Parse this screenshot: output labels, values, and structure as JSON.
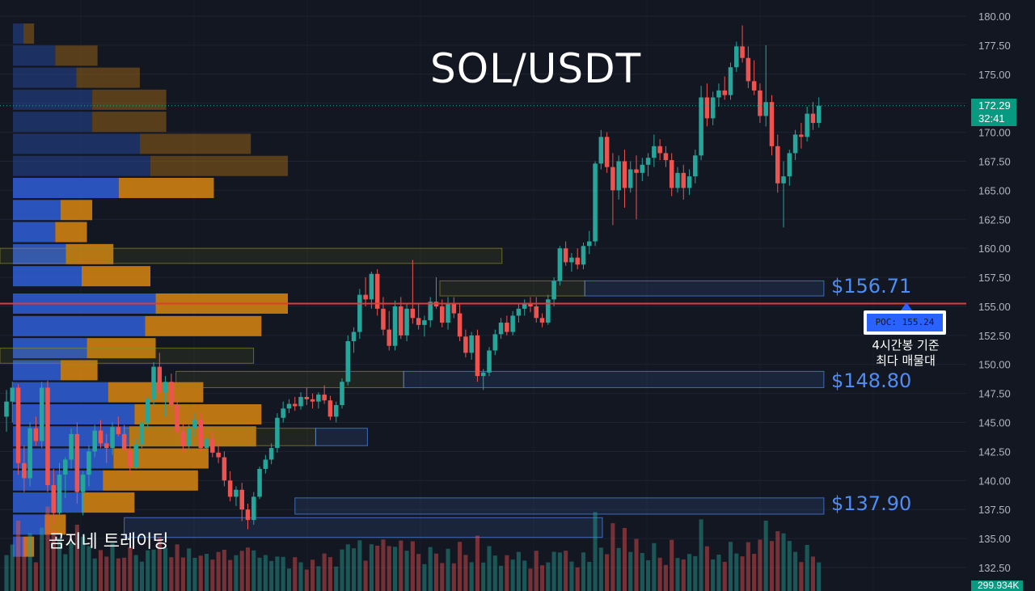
{
  "title": "SOL/USDT",
  "watermark": "곰지네 트레이딩",
  "last_price": {
    "price": "172.29",
    "countdown": "32:41",
    "value": 172.29
  },
  "volume_tag": "299.934K",
  "levels": [
    {
      "label": "$156.71",
      "value": 156.71
    },
    {
      "label": "$148.80",
      "value": 148.8
    },
    {
      "label": "$137.90",
      "value": 137.9
    }
  ],
  "poc": {
    "label": "POC: 155.24",
    "value": 155.24
  },
  "poc_note": [
    "4시간봉 기준",
    "최다 매물대"
  ],
  "colors": {
    "up": "#26a69a",
    "down": "#ef5350",
    "poc_line": "#e53935",
    "level_box": "#4f8df5",
    "vp_buy": "#2f5fd6",
    "vp_sell": "#d9860f",
    "background": "#131722"
  },
  "chart_data": {
    "type": "candlestick",
    "title": "SOL/USDT",
    "ylim": [
      131,
      181
    ],
    "ytick_labels": [
      "180.00",
      "177.50",
      "175.00",
      "172.50",
      "170.00",
      "167.50",
      "165.00",
      "162.50",
      "160.00",
      "157.50",
      "155.00",
      "152.50",
      "150.00",
      "147.50",
      "145.00",
      "142.50",
      "140.00",
      "137.50",
      "135.00",
      "132.50"
    ],
    "ohlc": [
      [
        145.5,
        147.8,
        144.2,
        146.8
      ],
      [
        146.8,
        148.5,
        145.0,
        148.0
      ],
      [
        148.0,
        148.3,
        140.5,
        141.5
      ],
      [
        141.5,
        143.0,
        139.0,
        140.2
      ],
      [
        140.2,
        145.0,
        139.5,
        144.5
      ],
      [
        144.5,
        145.5,
        143.0,
        143.4
      ],
      [
        143.4,
        148.5,
        142.8,
        148.0
      ],
      [
        148.0,
        148.6,
        139.0,
        139.6
      ],
      [
        139.6,
        141.0,
        136.2,
        137.2
      ],
      [
        137.2,
        141.5,
        136.8,
        140.5
      ],
      [
        140.5,
        142.0,
        138.5,
        141.8
      ],
      [
        141.8,
        144.5,
        141.0,
        144.0
      ],
      [
        144.0,
        145.0,
        138.0,
        139.0
      ],
      [
        139.0,
        140.8,
        137.0,
        140.5
      ],
      [
        140.5,
        143.0,
        139.5,
        142.5
      ],
      [
        142.5,
        144.8,
        142.0,
        144.3
      ],
      [
        144.3,
        145.2,
        142.8,
        143.2
      ],
      [
        143.2,
        144.0,
        141.5,
        142.8
      ],
      [
        142.8,
        145.0,
        142.2,
        144.6
      ],
      [
        144.6,
        145.5,
        143.8,
        144.0
      ],
      [
        144.0,
        144.8,
        142.0,
        142.6
      ],
      [
        142.6,
        143.2,
        140.5,
        141.2
      ],
      [
        141.2,
        143.6,
        141.0,
        143.1
      ],
      [
        143.1,
        145.5,
        142.8,
        145.0
      ],
      [
        145.0,
        147.2,
        144.5,
        147.0
      ],
      [
        147.0,
        150.2,
        146.4,
        149.8
      ],
      [
        149.8,
        151.0,
        147.0,
        147.6
      ],
      [
        147.6,
        149.0,
        145.5,
        148.5
      ],
      [
        148.5,
        149.2,
        146.0,
        146.5
      ],
      [
        146.5,
        147.2,
        143.8,
        144.2
      ],
      [
        144.2,
        145.0,
        142.4,
        143.0
      ],
      [
        143.0,
        144.8,
        142.5,
        144.5
      ],
      [
        144.5,
        145.8,
        143.8,
        145.2
      ],
      [
        145.2,
        145.8,
        142.5,
        142.8
      ],
      [
        142.8,
        144.0,
        142.0,
        143.6
      ],
      [
        143.6,
        144.2,
        142.0,
        142.4
      ],
      [
        142.4,
        143.2,
        141.5,
        142.0
      ],
      [
        142.0,
        142.5,
        139.5,
        140.0
      ],
      [
        140.0,
        140.8,
        138.2,
        138.6
      ],
      [
        138.6,
        139.5,
        137.8,
        139.2
      ],
      [
        139.2,
        139.8,
        136.5,
        137.5
      ],
      [
        137.5,
        138.0,
        135.8,
        136.6
      ],
      [
        136.6,
        139.0,
        136.2,
        138.6
      ],
      [
        138.6,
        141.2,
        138.4,
        141.0
      ],
      [
        141.0,
        142.2,
        140.6,
        141.8
      ],
      [
        141.8,
        143.2,
        141.4,
        142.8
      ],
      [
        142.8,
        145.8,
        142.4,
        145.4
      ],
      [
        145.4,
        146.8,
        145.0,
        146.2
      ],
      [
        146.2,
        147.0,
        145.8,
        146.6
      ],
      [
        146.6,
        147.2,
        146.0,
        146.4
      ],
      [
        146.4,
        147.6,
        146.1,
        147.2
      ],
      [
        147.2,
        148.0,
        146.5,
        147.0
      ],
      [
        147.0,
        147.5,
        146.2,
        146.8
      ],
      [
        146.8,
        147.6,
        146.2,
        147.4
      ],
      [
        147.4,
        148.2,
        146.6,
        146.9
      ],
      [
        146.9,
        147.3,
        145.2,
        145.5
      ],
      [
        145.5,
        146.8,
        145.0,
        146.5
      ],
      [
        146.5,
        148.8,
        146.2,
        148.5
      ],
      [
        148.5,
        152.5,
        148.2,
        152.0
      ],
      [
        152.0,
        153.2,
        151.0,
        152.8
      ],
      [
        152.8,
        156.5,
        152.2,
        156.0
      ],
      [
        156.0,
        157.5,
        155.0,
        155.6
      ],
      [
        155.6,
        158.0,
        154.8,
        157.8
      ],
      [
        157.8,
        158.2,
        154.2,
        154.8
      ],
      [
        154.8,
        155.8,
        152.5,
        153.0
      ],
      [
        153.0,
        154.6,
        151.2,
        151.6
      ],
      [
        151.6,
        155.5,
        151.2,
        155.0
      ],
      [
        155.0,
        155.8,
        152.2,
        152.5
      ],
      [
        152.5,
        155.2,
        152.0,
        154.8
      ],
      [
        154.8,
        159.0,
        153.5,
        154.0
      ],
      [
        154.0,
        155.2,
        153.0,
        153.4
      ],
      [
        153.4,
        154.2,
        152.4,
        153.8
      ],
      [
        153.8,
        155.8,
        153.2,
        155.4
      ],
      [
        155.4,
        157.5,
        154.8,
        155.0
      ],
      [
        155.0,
        155.6,
        153.2,
        153.6
      ],
      [
        153.6,
        155.8,
        153.0,
        155.2
      ],
      [
        155.2,
        155.8,
        154.0,
        154.4
      ],
      [
        154.4,
        155.2,
        152.0,
        152.4
      ],
      [
        152.4,
        153.0,
        150.6,
        151.0
      ],
      [
        151.0,
        152.8,
        150.4,
        152.5
      ],
      [
        152.5,
        153.0,
        148.5,
        149.0
      ],
      [
        149.0,
        149.6,
        147.8,
        149.3
      ],
      [
        149.3,
        151.5,
        149.0,
        151.2
      ],
      [
        151.2,
        153.0,
        150.8,
        152.6
      ],
      [
        152.6,
        154.0,
        152.2,
        153.6
      ],
      [
        153.6,
        154.2,
        152.5,
        152.8
      ],
      [
        152.8,
        154.6,
        152.5,
        154.2
      ],
      [
        154.2,
        155.2,
        153.6,
        154.8
      ],
      [
        154.8,
        155.6,
        154.2,
        155.2
      ],
      [
        155.2,
        155.8,
        154.5,
        155.0
      ],
      [
        155.0,
        155.8,
        153.6,
        154.0
      ],
      [
        154.0,
        154.4,
        153.2,
        153.6
      ],
      [
        153.6,
        156.0,
        153.4,
        155.6
      ],
      [
        155.6,
        157.5,
        155.0,
        157.2
      ],
      [
        157.2,
        160.2,
        156.8,
        160.0
      ],
      [
        160.0,
        160.6,
        158.5,
        158.8
      ],
      [
        158.8,
        159.6,
        158.0,
        159.2
      ],
      [
        159.2,
        160.0,
        158.2,
        158.6
      ],
      [
        158.6,
        160.5,
        158.2,
        160.2
      ],
      [
        160.2,
        161.5,
        159.5,
        160.6
      ],
      [
        160.6,
        167.5,
        160.2,
        167.3
      ],
      [
        167.3,
        170.2,
        166.8,
        169.6
      ],
      [
        169.6,
        170.0,
        166.5,
        167.0
      ],
      [
        167.0,
        168.2,
        162.0,
        165.0
      ],
      [
        165.0,
        168.0,
        164.2,
        167.5
      ],
      [
        167.5,
        168.5,
        163.5,
        165.2
      ],
      [
        165.2,
        167.5,
        164.8,
        166.8
      ],
      [
        166.8,
        168.0,
        162.5,
        166.5
      ],
      [
        166.5,
        167.8,
        165.8,
        167.2
      ],
      [
        167.2,
        168.2,
        166.2,
        167.8
      ],
      [
        167.8,
        169.8,
        167.0,
        168.8
      ],
      [
        168.8,
        169.4,
        167.6,
        168.2
      ],
      [
        168.2,
        168.8,
        167.0,
        167.6
      ],
      [
        167.6,
        168.2,
        164.5,
        165.2
      ],
      [
        165.2,
        167.0,
        164.8,
        166.5
      ],
      [
        166.5,
        167.2,
        164.2,
        165.2
      ],
      [
        165.2,
        166.8,
        164.6,
        166.2
      ],
      [
        166.2,
        168.5,
        165.6,
        168.0
      ],
      [
        168.0,
        174.0,
        167.6,
        173.0
      ],
      [
        173.0,
        174.2,
        170.5,
        171.2
      ],
      [
        171.2,
        173.5,
        170.6,
        173.0
      ],
      [
        173.0,
        174.2,
        172.2,
        173.6
      ],
      [
        173.6,
        174.8,
        172.8,
        173.2
      ],
      [
        173.2,
        176.0,
        172.8,
        175.6
      ],
      [
        175.6,
        177.8,
        175.2,
        177.4
      ],
      [
        177.4,
        179.2,
        176.0,
        176.4
      ],
      [
        176.4,
        177.4,
        173.8,
        174.4
      ],
      [
        174.4,
        176.2,
        173.2,
        173.6
      ],
      [
        173.6,
        174.2,
        170.8,
        171.4
      ],
      [
        171.4,
        177.5,
        170.5,
        172.6
      ],
      [
        172.6,
        173.2,
        168.0,
        168.8
      ],
      [
        168.8,
        169.8,
        164.8,
        165.6
      ],
      [
        165.6,
        167.5,
        161.8,
        166.2
      ],
      [
        166.2,
        168.5,
        165.4,
        168.2
      ],
      [
        168.2,
        170.2,
        167.6,
        169.8
      ],
      [
        169.8,
        170.8,
        168.6,
        169.6
      ],
      [
        169.6,
        172.2,
        169.2,
        171.6
      ],
      [
        171.6,
        172.6,
        170.2,
        170.8
      ],
      [
        170.8,
        173.0,
        170.4,
        172.29
      ]
    ],
    "volume_profile": [
      {
        "price": 178.5,
        "buy": 2,
        "sell": 2
      },
      {
        "price": 176.6,
        "buy": 8,
        "sell": 8
      },
      {
        "price": 174.7,
        "buy": 12,
        "sell": 12
      },
      {
        "price": 172.8,
        "buy": 15,
        "sell": 14
      },
      {
        "price": 170.9,
        "buy": 15,
        "sell": 14
      },
      {
        "price": 169.0,
        "buy": 24,
        "sell": 21
      },
      {
        "price": 167.1,
        "buy": 26,
        "sell": 26
      },
      {
        "price": 165.2,
        "buy": 20,
        "sell": 18
      },
      {
        "price": 163.3,
        "buy": 9,
        "sell": 6
      },
      {
        "price": 161.4,
        "buy": 8,
        "sell": 6
      },
      {
        "price": 159.5,
        "buy": 10,
        "sell": 9
      },
      {
        "price": 157.6,
        "buy": 13,
        "sell": 13
      },
      {
        "price": 155.24,
        "buy": 27,
        "sell": 25
      },
      {
        "price": 153.3,
        "buy": 25,
        "sell": 22
      },
      {
        "price": 151.4,
        "buy": 14,
        "sell": 13
      },
      {
        "price": 149.5,
        "buy": 9,
        "sell": 7
      },
      {
        "price": 147.6,
        "buy": 18,
        "sell": 18
      },
      {
        "price": 145.7,
        "buy": 23,
        "sell": 24
      },
      {
        "price": 143.8,
        "buy": 22,
        "sell": 24
      },
      {
        "price": 141.9,
        "buy": 19,
        "sell": 18
      },
      {
        "price": 140.0,
        "buy": 17,
        "sell": 18
      },
      {
        "price": 138.1,
        "buy": 13,
        "sell": 10
      },
      {
        "price": 136.2,
        "buy": 6,
        "sell": 4
      },
      {
        "price": 134.3,
        "buy": 2,
        "sell": 2
      }
    ],
    "zones": [
      {
        "top": 160.0,
        "bottom": 158.7,
        "x_start": 0,
        "x_end": 0.485,
        "color": "#8a8a2a"
      },
      {
        "top": 157.2,
        "bottom": 155.9,
        "x_start": 0.425,
        "x_end": 0.565,
        "color": "#8a8a2a"
      },
      {
        "top": 157.2,
        "bottom": 155.9,
        "x_start": 0.565,
        "x_end": 0.796,
        "color": "#4f8df5"
      },
      {
        "top": 151.4,
        "bottom": 150.1,
        "x_start": 0,
        "x_end": 0.245,
        "color": "#8a8a2a"
      },
      {
        "top": 149.4,
        "bottom": 148.0,
        "x_start": 0.17,
        "x_end": 0.39,
        "color": "#8a8a2a"
      },
      {
        "top": 149.4,
        "bottom": 148.0,
        "x_start": 0.39,
        "x_end": 0.796,
        "color": "#4f8df5"
      },
      {
        "top": 144.5,
        "bottom": 143.0,
        "x_start": 0.12,
        "x_end": 0.305,
        "color": "#8a8a2a"
      },
      {
        "top": 144.5,
        "bottom": 143.0,
        "x_start": 0.305,
        "x_end": 0.355,
        "color": "#4f8df5"
      },
      {
        "top": 138.5,
        "bottom": 137.1,
        "x_start": 0.285,
        "x_end": 0.796,
        "color": "#4f8df5"
      },
      {
        "top": 136.8,
        "bottom": 135.1,
        "x_start": 0.12,
        "x_end": 0.582,
        "color": "#4f8df5"
      }
    ]
  }
}
